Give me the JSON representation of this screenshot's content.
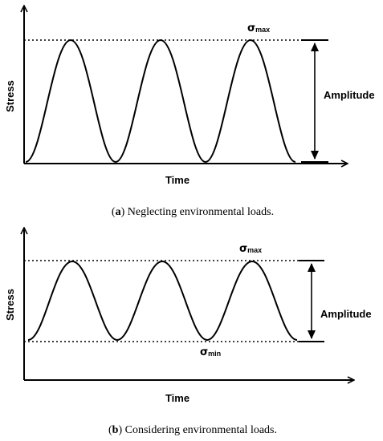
{
  "panels": [
    {
      "id": "a",
      "y_axis_label": "Stress",
      "x_axis_label": "Time",
      "max_label_symbol": "σ",
      "max_label_sub": "max",
      "amplitude_label": "Amplitude",
      "caption_letter": "a",
      "caption_text": " Neglecting environmental loads."
    },
    {
      "id": "b",
      "y_axis_label": "Stress",
      "x_axis_label": "Time",
      "max_label_symbol": "σ",
      "max_label_sub": "max",
      "min_label_symbol": "σ",
      "min_label_sub": "min",
      "amplitude_label": "Amplitude",
      "caption_letter": "b",
      "caption_text": " Considering environmental loads."
    }
  ],
  "colors": {
    "line": "#000000",
    "background": "#ffffff"
  }
}
